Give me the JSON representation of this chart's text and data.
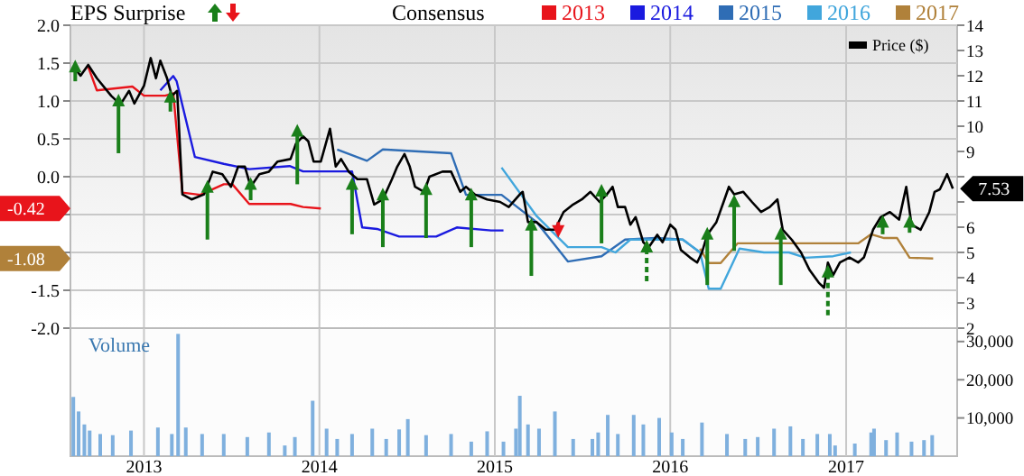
{
  "chart_data": [
    {
      "type": "line",
      "ylabel": "EPS Surprise",
      "legend_title": "Consensus",
      "legend": "top right",
      "grid": true,
      "tick_labels": "y",
      "xlim": [
        "2012-08-01",
        "2017-08-20"
      ],
      "xticks": [
        {
          "value": "2013-01-01",
          "label": null
        },
        {
          "value": "2014-01-01",
          "label": null
        },
        {
          "value": "2015-01-01",
          "label": null
        },
        {
          "value": "2016-01-01",
          "label": null
        },
        {
          "value": "2017-01-01",
          "label": null
        }
      ],
      "ylim": [
        -2,
        2
      ],
      "yticks": [
        {
          "value": 2,
          "label": "2.0"
        },
        {
          "value": 1.5,
          "label": "1.5"
        },
        {
          "value": 1,
          "label": "1.0"
        },
        {
          "value": 0.5,
          "label": "0.5"
        },
        {
          "value": 0,
          "label": "0.0"
        },
        {
          "value": -0.5,
          "label": null
        },
        {
          "value": -1,
          "label": null
        },
        {
          "value": -1.5,
          "label": "-1.5"
        },
        {
          "value": -2,
          "label": "-2.0"
        }
      ],
      "y2lim": [
        2,
        14
      ],
      "y2ticks": [
        2,
        3,
        4,
        5,
        6,
        {
          "value": 7,
          "label": null
        },
        {
          "value": 8,
          "label": null
        },
        9,
        10,
        11,
        12,
        13,
        14
      ],
      "annotations": [
        "-0.42",
        "-1.08"
      ],
      "series": [
        {
          "name": "2013",
          "color": "#e8141b",
          "x": [
            "2012-09-07",
            "2012-09-25",
            "2012-12-08",
            "2013-01-01",
            "2013-02-14",
            "2013-03-03",
            "2013-03-22",
            "2013-04-28",
            "2013-06-16",
            "2013-07-04",
            "2013-08-08",
            "2013-11-02",
            "2013-11-28",
            "2014-01-04"
          ],
          "values": [
            1.45,
            1.14,
            1.19,
            1.07,
            1.07,
            1.1,
            -0.21,
            -0.24,
            -0.1,
            -0.1,
            -0.36,
            -0.36,
            -0.4,
            -0.42
          ]
        },
        {
          "name": "2014",
          "color": "#1a1adf",
          "x": [
            "2013-02-04",
            "2013-03-03",
            "2013-03-10",
            "2013-04-17",
            "2013-06-16",
            "2013-08-08",
            "2013-10-31",
            "2013-11-28",
            "2014-03-10",
            "2014-03-31",
            "2014-05-01",
            "2014-06-16",
            "2014-09-01",
            "2014-10-14",
            "2014-12-24",
            "2015-01-19"
          ],
          "values": [
            1.14,
            1.33,
            1.26,
            0.26,
            0.17,
            0.1,
            0.14,
            0.07,
            0.07,
            -0.67,
            -0.69,
            -0.79,
            -0.79,
            -0.67,
            -0.71,
            -0.71
          ]
        },
        {
          "name": "2015",
          "color": "#2f6db5",
          "x": [
            "2014-02-07",
            "2014-04-10",
            "2014-05-13",
            "2014-10-02",
            "2014-11-02",
            "2015-01-15",
            "2015-03-29",
            "2015-06-02",
            "2015-08-11",
            "2015-09-29",
            "2015-12-02",
            "2016-01-27",
            "2016-03-03"
          ],
          "values": [
            0.36,
            0.21,
            0.36,
            0.31,
            -0.24,
            -0.24,
            -0.6,
            -1.12,
            -1.05,
            -0.83,
            -0.81,
            -0.83,
            -1.0
          ]
        },
        {
          "name": "2016",
          "color": "#41a6dc",
          "x": [
            "2015-01-15",
            "2015-03-29",
            "2015-06-02",
            "2015-08-11",
            "2015-09-09",
            "2015-10-10",
            "2015-11-29",
            "2016-01-27",
            "2016-03-03",
            "2016-03-21",
            "2016-04-15",
            "2016-05-24",
            "2016-07-14",
            "2016-09-04",
            "2016-10-08",
            "2016-12-05",
            "2017-01-11"
          ],
          "values": [
            0.12,
            -0.52,
            -0.93,
            -0.93,
            -1.0,
            -0.83,
            -0.83,
            -0.83,
            -1.0,
            -1.48,
            -1.48,
            -0.95,
            -1.0,
            -1.0,
            -1.07,
            -1.05,
            -1.0
          ]
        },
        {
          "name": "2017",
          "color": "#b0813a",
          "x": [
            "2016-03-03",
            "2016-03-21",
            "2016-04-15",
            "2016-05-20",
            "2016-09-29",
            "2017-01-26",
            "2017-02-22",
            "2017-03-21",
            "2017-04-17",
            "2017-05-13",
            "2017-07-01"
          ],
          "values": [
            -0.95,
            -1.14,
            -1.14,
            -0.88,
            -0.88,
            -0.88,
            -0.76,
            -0.81,
            -0.81,
            -1.07,
            -1.08
          ]
        },
        {
          "name": "Price ($)",
          "color": "#000000",
          "axis": "y2",
          "x": [
            "2012-08-07",
            "2012-08-22",
            "2012-09-07",
            "2012-09-25",
            "2012-10-25",
            "2012-11-13",
            "2012-12-01",
            "2012-12-12",
            "2013-01-01",
            "2013-01-15",
            "2013-01-26",
            "2013-02-04",
            "2013-02-18",
            "2013-02-28",
            "2013-03-11",
            "2013-03-22",
            "2013-04-10",
            "2013-05-06",
            "2013-05-24",
            "2013-06-13",
            "2013-07-01",
            "2013-07-16",
            "2013-07-30",
            "2013-08-11",
            "2013-08-29",
            "2013-09-18",
            "2013-10-06",
            "2013-11-02",
            "2013-11-13",
            "2013-11-28",
            "2013-12-09",
            "2013-12-20",
            "2014-01-04",
            "2014-01-23",
            "2014-02-04",
            "2014-02-15",
            "2014-03-03",
            "2014-03-21",
            "2014-04-10",
            "2014-04-25",
            "2014-05-13",
            "2014-06-01",
            "2014-06-12",
            "2014-06-27",
            "2014-07-08",
            "2014-07-19",
            "2014-08-07",
            "2014-08-18",
            "2014-09-14",
            "2014-10-02",
            "2014-10-21",
            "2014-11-02",
            "2014-11-20",
            "2014-12-16",
            "2015-01-12",
            "2015-01-30",
            "2015-02-22",
            "2015-02-28",
            "2015-03-11",
            "2015-03-29",
            "2015-04-17",
            "2015-05-06",
            "2015-05-24",
            "2015-06-13",
            "2015-07-01",
            "2015-07-19",
            "2015-08-07",
            "2015-08-22",
            "2015-09-03",
            "2015-09-14",
            "2015-09-29",
            "2015-10-10",
            "2015-10-21",
            "2015-11-06",
            "2015-11-17",
            "2015-12-05",
            "2015-12-16",
            "2016-01-01",
            "2016-01-12",
            "2016-01-23",
            "2016-02-11",
            "2016-02-26",
            "2016-03-07",
            "2016-03-18",
            "2016-04-06",
            "2016-04-21",
            "2016-05-02",
            "2016-05-13",
            "2016-06-01",
            "2016-06-19",
            "2016-07-08",
            "2016-07-26",
            "2016-08-11",
            "2016-08-22",
            "2016-09-10",
            "2016-09-29",
            "2016-10-17",
            "2016-11-05",
            "2016-11-16",
            "2016-11-24",
            "2016-12-05",
            "2016-12-19",
            "2017-01-08",
            "2017-01-26",
            "2017-02-07",
            "2017-02-26",
            "2017-03-14",
            "2017-04-02",
            "2017-04-21",
            "2017-05-06",
            "2017-05-17",
            "2017-06-05",
            "2017-06-23",
            "2017-07-04",
            "2017-07-15",
            "2017-07-30",
            "2017-08-11"
          ],
          "values": [
            12.38,
            12.0,
            12.43,
            11.9,
            11.2,
            10.86,
            11.4,
            10.9,
            11.6,
            12.7,
            11.9,
            12.6,
            11.9,
            11.2,
            11.4,
            7.3,
            7.1,
            7.3,
            8.2,
            8.1,
            7.6,
            8.4,
            8.4,
            7.6,
            8.1,
            8.2,
            8.6,
            8.7,
            9.3,
            9.6,
            9.4,
            8.6,
            8.6,
            9.9,
            8.4,
            8.7,
            8.2,
            7.9,
            7.9,
            6.9,
            7.1,
            7.9,
            8.4,
            8.9,
            8.4,
            7.6,
            7.4,
            8.0,
            8.2,
            8.2,
            7.4,
            7.6,
            7.3,
            7.1,
            7.0,
            6.8,
            7.3,
            7.4,
            6.2,
            6.2,
            5.9,
            5.9,
            6.6,
            6.9,
            7.1,
            7.4,
            7.0,
            7.3,
            7.6,
            6.8,
            6.8,
            6.1,
            6.4,
            5.4,
            5.2,
            5.7,
            5.4,
            6.1,
            5.9,
            5.1,
            4.8,
            4.6,
            5.0,
            5.7,
            6.2,
            7.0,
            7.6,
            7.3,
            7.4,
            7.0,
            6.6,
            6.8,
            7.1,
            5.9,
            5.5,
            5.0,
            4.3,
            3.8,
            3.6,
            4.6,
            4.1,
            4.6,
            4.8,
            4.6,
            4.8,
            5.9,
            6.4,
            6.6,
            6.3,
            7.6,
            6.1,
            5.9,
            6.6,
            7.4,
            7.5,
            8.1,
            7.53
          ],
          "value_labels": [
            null,
            null,
            null,
            null,
            null,
            null,
            null,
            null,
            null,
            null,
            null,
            null,
            null,
            null,
            null,
            null,
            null,
            null,
            null,
            null,
            null,
            null,
            null,
            null,
            null,
            null,
            null,
            null,
            null,
            null,
            null,
            null,
            null,
            null,
            null,
            null,
            null,
            null,
            null,
            null,
            null,
            null,
            null,
            null,
            null,
            null,
            null,
            null,
            null,
            null,
            null,
            null,
            null,
            null,
            null,
            null,
            null,
            null,
            null,
            null,
            null,
            null,
            null,
            null,
            null,
            null,
            null,
            null,
            null,
            null,
            null,
            null,
            null,
            null,
            null,
            null,
            null,
            null,
            null,
            null,
            null,
            null,
            null,
            null,
            null,
            null,
            null,
            null,
            null,
            null,
            null,
            null,
            null,
            null,
            null,
            null,
            null,
            null,
            null,
            null,
            null,
            null,
            null,
            null,
            null,
            null,
            null,
            null,
            null,
            null,
            null,
            null,
            null,
            null,
            null,
            null,
            "7.53"
          ]
        },
        {
          "type": "scatter",
          "color": "#1a7f1a",
          "marker": "triangle",
          "line_style": "solid",
          "x": [
            "2012-08-11",
            "2012-11-09",
            "2013-02-25",
            "2013-05-13",
            "2013-08-11",
            "2013-11-16",
            "2014-03-10",
            "2014-05-13",
            "2014-08-11",
            "2014-11-13",
            "2015-03-18",
            "2015-08-11",
            "2016-03-18",
            "2016-05-13",
            "2016-08-18",
            "2017-03-18",
            "2017-05-13"
          ],
          "values": [
            1.45,
            1.0,
            1.05,
            -0.14,
            -0.1,
            0.6,
            -0.1,
            -0.24,
            -0.17,
            -0.24,
            -0.64,
            -0.19,
            -0.76,
            -0.33,
            -0.76,
            -0.6,
            -0.6
          ],
          "errors": [
            [
              1.26,
              1.45
            ],
            [
              0.31,
              1.0
            ],
            [
              0.86,
              1.05
            ],
            [
              -0.83,
              -0.14
            ],
            [
              -0.31,
              -0.1
            ],
            [
              -0.1,
              0.6
            ],
            [
              -0.76,
              -0.1
            ],
            [
              -0.93,
              -0.24
            ],
            [
              -0.81,
              -0.17
            ],
            [
              -0.93,
              -0.24
            ],
            [
              -1.31,
              -0.64
            ],
            [
              -0.88,
              -0.19
            ],
            [
              -1.43,
              -0.76
            ],
            [
              -0.98,
              -0.33
            ],
            [
              -1.43,
              -0.76
            ],
            [
              -0.76,
              -0.6
            ],
            [
              -0.74,
              -0.6
            ]
          ]
        },
        {
          "type": "scatter",
          "color": "#1a7f1a",
          "marker": "triangle",
          "line_style": "dashed",
          "x": [
            "2015-11-13",
            "2016-11-24"
          ],
          "values": [
            -0.93,
            -1.26
          ],
          "errors": [
            [
              -1.38,
              -0.93
            ],
            [
              -1.83,
              -1.26
            ]
          ]
        },
        {
          "type": "scatter",
          "color": "#e8141b",
          "marker": "triangle",
          "line_style": "solid",
          "x": [
            "2015-05-13"
          ],
          "values": [
            -0.71
          ],
          "errors": [
            [
              -0.71,
              -0.6
            ]
          ]
        }
      ]
    },
    {
      "type": "bar",
      "title": "Volume",
      "grid": "x",
      "xlim": [
        "2012-08-01",
        "2017-08-20"
      ],
      "xticks": [
        {
          "value": "2013-01-01",
          "label": "2013"
        },
        {
          "value": "2014-01-01",
          "label": "2014"
        },
        {
          "value": "2015-01-01",
          "label": "2015"
        },
        {
          "value": "2016-01-01",
          "label": "2016"
        },
        {
          "value": "2017-01-01",
          "label": "2017"
        }
      ],
      "y2lim": [
        0,
        33500
      ],
      "y2ticks": [
        {
          "value": 10000,
          "label": "10,000"
        },
        {
          "value": 20000,
          "label": "20,000"
        },
        {
          "value": 30000,
          "label": "30,000"
        }
      ],
      "series": [
        {
          "color": "#7fb0de",
          "axis": "y2",
          "x": [
            "2012-08-07",
            "2012-08-18",
            "2012-08-30",
            "2012-09-10",
            "2012-10-02",
            "2012-10-28",
            "2012-12-05",
            "2013-01-30",
            "2013-02-28",
            "2013-03-13",
            "2013-03-29",
            "2013-05-02",
            "2013-06-16",
            "2013-08-04",
            "2013-09-18",
            "2013-10-21",
            "2013-11-11",
            "2013-12-18",
            "2014-01-16",
            "2014-02-07",
            "2014-03-10",
            "2014-04-21",
            "2014-05-20",
            "2014-06-16",
            "2014-07-04",
            "2014-08-11",
            "2014-10-02",
            "2014-11-13",
            "2014-12-16",
            "2015-01-19",
            "2015-02-14",
            "2015-02-22",
            "2015-03-11",
            "2015-04-03",
            "2015-05-06",
            "2015-06-13",
            "2015-07-23",
            "2015-08-04",
            "2015-08-24",
            "2015-09-14",
            "2015-10-17",
            "2015-11-06",
            "2015-12-09",
            "2016-01-04",
            "2016-01-27",
            "2016-03-07",
            "2016-04-28",
            "2016-06-05",
            "2016-07-01",
            "2016-08-04",
            "2016-09-07",
            "2016-10-03",
            "2016-11-02",
            "2016-11-28",
            "2016-12-09",
            "2017-01-19",
            "2017-02-22",
            "2017-02-28",
            "2017-03-25",
            "2017-04-17",
            "2017-05-17",
            "2017-06-12",
            "2017-06-29"
          ],
          "values": [
            15500,
            11700,
            8300,
            6700,
            5800,
            5500,
            6700,
            7500,
            5800,
            32000,
            7500,
            5800,
            5800,
            5000,
            6200,
            2800,
            5000,
            14500,
            7200,
            4500,
            5800,
            7200,
            4500,
            7000,
            9700,
            5500,
            5800,
            3800,
            6500,
            3800,
            7200,
            15800,
            8300,
            7200,
            11700,
            4500,
            4500,
            6200,
            10800,
            5800,
            10800,
            8300,
            10000,
            6200,
            4500,
            8800,
            5800,
            4500,
            5000,
            7200,
            7800,
            4500,
            5800,
            5800,
            2800,
            3300,
            6200,
            7200,
            4200,
            6200,
            3800,
            4200,
            5500
          ]
        }
      ]
    }
  ]
}
